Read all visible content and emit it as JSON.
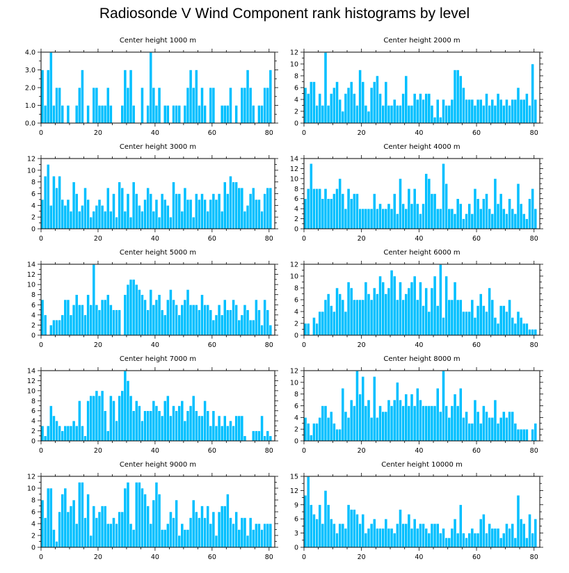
{
  "page_title": "Radiosonde V Wind Component rank histograms by level",
  "chart_data": [
    {
      "type": "bar",
      "title": "Center height 1000 m",
      "xlim": [
        0,
        82
      ],
      "xticks": [
        0,
        20,
        40,
        60,
        80
      ],
      "ylim": [
        0,
        4
      ],
      "yticks": [
        0,
        1,
        2,
        3,
        4
      ],
      "ytick_labels": [
        "0.0",
        "1.0",
        "2.0",
        "3.0",
        "4.0"
      ],
      "values": [
        3,
        1,
        3,
        4,
        1,
        2,
        2,
        1,
        0,
        1,
        0,
        0,
        1,
        2,
        3,
        0,
        1,
        0,
        2,
        2,
        1,
        1,
        1,
        2,
        1,
        0,
        0,
        0,
        1,
        3,
        2,
        3,
        1,
        0,
        0,
        2,
        0,
        1,
        4,
        2,
        1,
        2,
        0,
        1,
        1,
        0,
        1,
        1,
        1,
        0,
        1,
        2,
        3,
        2,
        3,
        1,
        2,
        1,
        0,
        2,
        2,
        0,
        0,
        1,
        1,
        1,
        2,
        0,
        1,
        0,
        2,
        2,
        3,
        2,
        1,
        0,
        1,
        1,
        2,
        2,
        3
      ]
    },
    {
      "type": "bar",
      "title": "Center height 2000 m",
      "xlim": [
        0,
        82
      ],
      "xticks": [
        0,
        20,
        40,
        60,
        80
      ],
      "ylim": [
        0,
        12
      ],
      "yticks": [
        0,
        2,
        4,
        6,
        8,
        10,
        12
      ],
      "values": [
        6,
        5,
        7,
        7,
        3,
        5,
        3,
        12,
        3,
        5,
        6,
        7,
        4,
        2,
        5,
        6,
        7,
        5,
        3,
        9,
        7,
        3,
        2,
        6,
        7,
        8,
        5,
        3,
        7,
        3,
        3,
        4,
        3,
        3,
        5,
        8,
        3,
        3,
        5,
        4,
        5,
        4,
        5,
        5,
        3,
        1,
        4,
        1,
        4,
        3,
        3,
        4,
        9,
        9,
        8,
        6,
        4,
        4,
        4,
        3,
        4,
        4,
        3,
        5,
        3,
        4,
        3,
        5,
        4,
        3,
        4,
        3,
        4,
        4,
        6,
        4,
        4,
        5,
        3,
        10,
        4
      ]
    },
    {
      "type": "bar",
      "title": "Center height 3000 m",
      "xlim": [
        0,
        82
      ],
      "xticks": [
        0,
        20,
        40,
        60,
        80
      ],
      "ylim": [
        0,
        12
      ],
      "yticks": [
        0,
        2,
        4,
        6,
        8,
        10,
        12
      ],
      "values": [
        5,
        9,
        11,
        4,
        9,
        7,
        9,
        5,
        4,
        5,
        3,
        8,
        6,
        3,
        4,
        7,
        5,
        2,
        3,
        4,
        5,
        4,
        3,
        7,
        3,
        6,
        2,
        8,
        7,
        3,
        6,
        2,
        8,
        6,
        4,
        3,
        5,
        7,
        6,
        3,
        5,
        2,
        6,
        5,
        4,
        2,
        8,
        6,
        6,
        3,
        7,
        5,
        5,
        2,
        6,
        5,
        6,
        5,
        3,
        5,
        6,
        5,
        6,
        3,
        8,
        6,
        9,
        8,
        8,
        7,
        7,
        3,
        4,
        6,
        7,
        5,
        5,
        3,
        6,
        7,
        7
      ]
    },
    {
      "type": "bar",
      "title": "Center height 4000 m",
      "xlim": [
        0,
        82
      ],
      "xticks": [
        0,
        20,
        40,
        60,
        80
      ],
      "ylim": [
        0,
        14
      ],
      "yticks": [
        0,
        2,
        4,
        6,
        8,
        10,
        12,
        14
      ],
      "values": [
        6,
        8,
        13,
        8,
        8,
        8,
        6,
        8,
        6,
        6,
        7,
        8,
        10,
        7,
        4,
        8,
        6,
        7,
        7,
        4,
        4,
        4,
        4,
        4,
        7,
        4,
        5,
        4,
        4,
        5,
        4,
        7,
        3,
        10,
        5,
        4,
        8,
        5,
        8,
        5,
        3,
        5,
        11,
        10,
        7,
        7,
        4,
        4,
        13,
        9,
        4,
        4,
        3,
        6,
        5,
        2,
        3,
        5,
        3,
        8,
        6,
        4,
        6,
        7,
        4,
        3,
        10,
        5,
        7,
        4,
        3,
        6,
        4,
        3,
        9,
        5,
        3,
        2,
        6,
        8,
        4
      ]
    },
    {
      "type": "bar",
      "title": "Center height 5000 m",
      "xlim": [
        0,
        82
      ],
      "xticks": [
        0,
        20,
        40,
        60,
        80
      ],
      "ylim": [
        0,
        14
      ],
      "yticks": [
        0,
        2,
        4,
        6,
        8,
        10,
        12,
        14
      ],
      "values": [
        7,
        4,
        0,
        2,
        3,
        3,
        3,
        4,
        7,
        7,
        4,
        6,
        8,
        6,
        6,
        4,
        8,
        6,
        14,
        6,
        5,
        7,
        7,
        8,
        6,
        5,
        5,
        5,
        0,
        8,
        10,
        11,
        11,
        10,
        9,
        8,
        7,
        5,
        9,
        6,
        7,
        8,
        5,
        4,
        7,
        9,
        7,
        6,
        4,
        6,
        7,
        9,
        6,
        6,
        6,
        5,
        8,
        6,
        6,
        5,
        3,
        4,
        6,
        4,
        7,
        5,
        5,
        7,
        6,
        3,
        4,
        6,
        5,
        3,
        3,
        7,
        5,
        2,
        7,
        5,
        2
      ]
    },
    {
      "type": "bar",
      "title": "Center height 6000 m",
      "xlim": [
        0,
        82
      ],
      "xticks": [
        0,
        20,
        40,
        60,
        80
      ],
      "ylim": [
        0,
        12
      ],
      "yticks": [
        0,
        2,
        4,
        6,
        8,
        10,
        12
      ],
      "values": [
        2,
        2,
        0,
        3,
        2,
        4,
        4,
        6,
        7,
        5,
        4,
        8,
        7,
        6,
        4,
        9,
        8,
        6,
        6,
        6,
        6,
        9,
        7,
        6,
        8,
        7,
        10,
        9,
        7,
        8,
        11,
        10,
        6,
        9,
        6,
        7,
        8,
        9,
        10,
        6,
        9,
        5,
        8,
        4,
        8,
        10,
        5,
        12,
        3,
        10,
        6,
        6,
        9,
        6,
        6,
        4,
        4,
        4,
        6,
        3,
        5,
        7,
        5,
        4,
        8,
        6,
        3,
        2,
        5,
        5,
        4,
        6,
        3,
        2,
        4,
        3,
        2,
        2,
        1,
        1,
        1
      ]
    },
    {
      "type": "bar",
      "title": "Center height 7000 m",
      "xlim": [
        0,
        82
      ],
      "xticks": [
        0,
        20,
        40,
        60,
        80
      ],
      "ylim": [
        0,
        14
      ],
      "yticks": [
        0,
        2,
        4,
        6,
        8,
        10,
        12,
        14
      ],
      "values": [
        3,
        1,
        3,
        7,
        5,
        4,
        3,
        2,
        3,
        3,
        3,
        4,
        3,
        8,
        3,
        1,
        8,
        9,
        9,
        10,
        9,
        10,
        6,
        2,
        9,
        8,
        4,
        9,
        10,
        14,
        12,
        9,
        6,
        8,
        7,
        4,
        6,
        6,
        6,
        8,
        7,
        6,
        5,
        8,
        9,
        5,
        7,
        6,
        7,
        8,
        4,
        6,
        7,
        9,
        6,
        5,
        5,
        8,
        6,
        3,
        6,
        3,
        5,
        3,
        5,
        3,
        4,
        3,
        5,
        5,
        5,
        1,
        0,
        0,
        2,
        2,
        2,
        5,
        1,
        2,
        1
      ]
    },
    {
      "type": "bar",
      "title": "Center height 8000 m",
      "xlim": [
        0,
        82
      ],
      "xticks": [
        0,
        20,
        40,
        60,
        80
      ],
      "ylim": [
        0,
        12
      ],
      "yticks": [
        0,
        2,
        4,
        6,
        8,
        10,
        12
      ],
      "values": [
        4,
        3,
        1,
        3,
        3,
        4,
        6,
        6,
        4,
        5,
        3,
        2,
        2,
        9,
        5,
        4,
        7,
        6,
        12,
        8,
        11,
        6,
        7,
        4,
        11,
        4,
        6,
        5,
        5,
        7,
        6,
        7,
        10,
        7,
        6,
        8,
        6,
        8,
        6,
        9,
        7,
        6,
        6,
        6,
        6,
        6,
        9,
        5,
        12,
        6,
        4,
        6,
        8,
        6,
        9,
        4,
        5,
        3,
        3,
        7,
        5,
        3,
        6,
        5,
        4,
        4,
        7,
        3,
        4,
        5,
        4,
        5,
        5,
        3,
        2,
        2,
        2,
        2,
        0,
        2,
        3
      ]
    },
    {
      "type": "bar",
      "title": "Center height 9000 m",
      "xlim": [
        0,
        82
      ],
      "xticks": [
        0,
        20,
        40,
        60,
        80
      ],
      "ylim": [
        0,
        12
      ],
      "yticks": [
        0,
        2,
        4,
        6,
        8,
        10,
        12
      ],
      "values": [
        8,
        5,
        10,
        10,
        3,
        1,
        6,
        9,
        10,
        6,
        7,
        8,
        4,
        11,
        11,
        5,
        9,
        2,
        7,
        5,
        6,
        7,
        7,
        4,
        4,
        5,
        4,
        6,
        6,
        10,
        11,
        4,
        3,
        11,
        11,
        10,
        9,
        7,
        4,
        8,
        11,
        9,
        3,
        3,
        4,
        6,
        5,
        8,
        2,
        4,
        3,
        3,
        5,
        8,
        6,
        5,
        7,
        5,
        7,
        4,
        6,
        2,
        6,
        7,
        7,
        9,
        5,
        4,
        6,
        3,
        5,
        5,
        2,
        5,
        3,
        4,
        4,
        3,
        4,
        4,
        4
      ]
    },
    {
      "type": "bar",
      "title": "Center height 10000 m",
      "xlim": [
        0,
        82
      ],
      "xticks": [
        0,
        20,
        40,
        60,
        80
      ],
      "ylim": [
        0,
        15
      ],
      "yticks": [
        0,
        3,
        6,
        9,
        12,
        15
      ],
      "values": [
        11,
        15,
        9,
        7,
        6,
        9,
        5,
        12,
        9,
        6,
        5,
        3,
        5,
        5,
        4,
        9,
        8,
        8,
        7,
        5,
        7,
        3,
        4,
        5,
        6,
        4,
        4,
        4,
        6,
        4,
        4,
        3,
        5,
        8,
        5,
        5,
        7,
        4,
        6,
        4,
        5,
        5,
        4,
        3,
        5,
        5,
        5,
        3,
        4,
        2,
        2,
        4,
        6,
        3,
        9,
        3,
        2,
        3,
        4,
        3,
        3,
        6,
        7,
        3,
        5,
        4,
        4,
        4,
        2,
        3,
        5,
        4,
        5,
        2,
        11,
        6,
        5,
        2,
        7,
        3,
        6
      ]
    }
  ]
}
